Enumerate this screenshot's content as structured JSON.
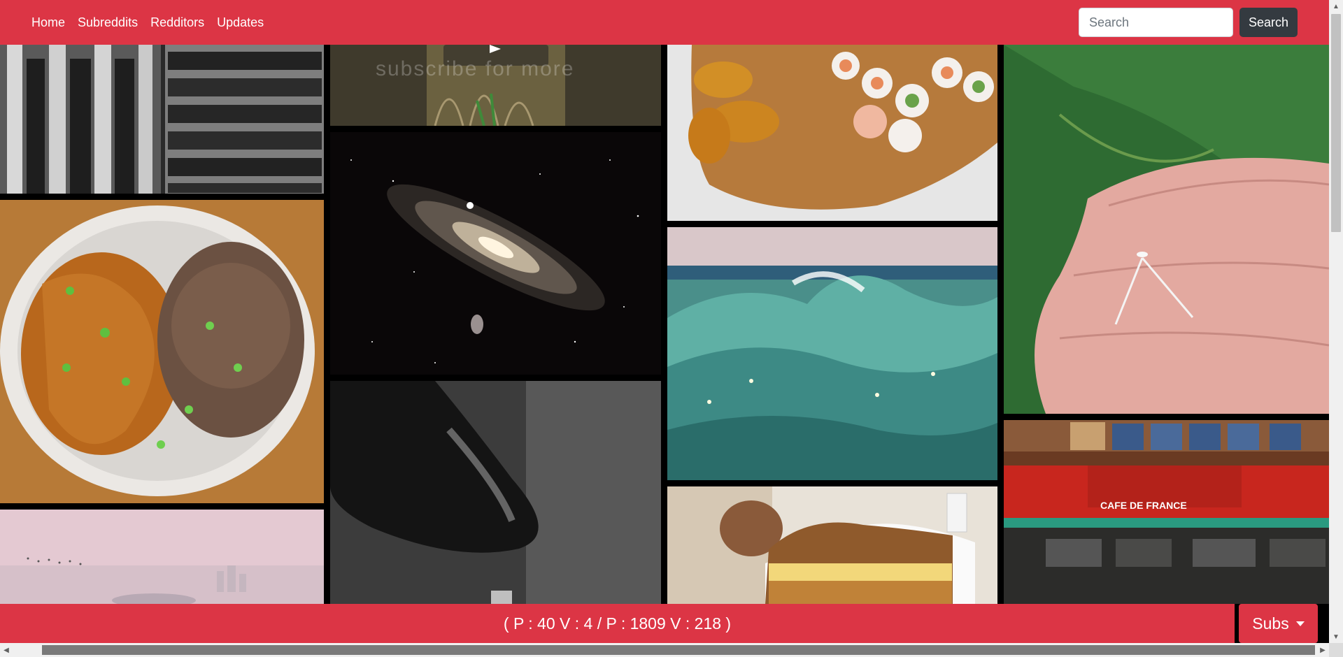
{
  "navbar": {
    "links": [
      {
        "label": "Home"
      },
      {
        "label": "Subreddits"
      },
      {
        "label": "Redditors"
      },
      {
        "label": "Updates"
      }
    ],
    "search": {
      "placeholder": "Search",
      "value": "",
      "button_label": "Search"
    }
  },
  "gallery": {
    "video_overlay_text": "subscribe for more",
    "cafe_sign_text": "CAFE DE FRANCE",
    "tiles": [
      {
        "subject": "black and white building columns"
      },
      {
        "subject": "noodles and crispy meat on plate"
      },
      {
        "subject": "pink sky with birds and city skyline"
      },
      {
        "subject": "video thumbnail dry grass"
      },
      {
        "subject": "andromeda galaxy star field"
      },
      {
        "subject": "black and white ceramic vessel"
      },
      {
        "subject": "shrimp tempura and sushi rolls on board"
      },
      {
        "subject": "ocean wave painting"
      },
      {
        "subject": "grilled cheese sandwich"
      },
      {
        "subject": "tiny insect on fingertips over leaf"
      },
      {
        "subject": "cafe storefront with coca-cola sign"
      }
    ]
  },
  "footer": {
    "status": "( P : 40 V : 4 / P : 1809 V : 218 )",
    "subs_label": "Subs"
  },
  "colors": {
    "accent": "#dc3545",
    "dark_button": "#343a40"
  }
}
